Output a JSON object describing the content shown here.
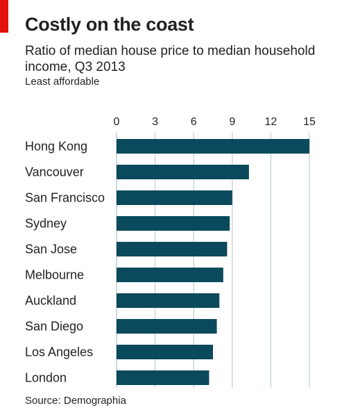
{
  "chart_data": {
    "type": "bar",
    "orientation": "horizontal",
    "title": "Costly on the coast",
    "subtitle": "Ratio of median house price to median household income, Q3 2013",
    "note": "Least affordable",
    "source": "Source: Demographia",
    "categories": [
      "Hong Kong",
      "Vancouver",
      "San Francisco",
      "Sydney",
      "San Jose",
      "Melbourne",
      "Auckland",
      "San Diego",
      "Los Angeles",
      "London"
    ],
    "values": [
      15.0,
      10.3,
      9.0,
      8.8,
      8.6,
      8.3,
      8.0,
      7.8,
      7.5,
      7.2
    ],
    "xlim": [
      0,
      15
    ],
    "ticks": [
      0,
      3,
      6,
      9,
      12,
      15
    ],
    "grid": "vertical",
    "bar_color": "#0a4a5c",
    "grid_color": "#cbd8dd",
    "accent_color": "#e3120b"
  }
}
